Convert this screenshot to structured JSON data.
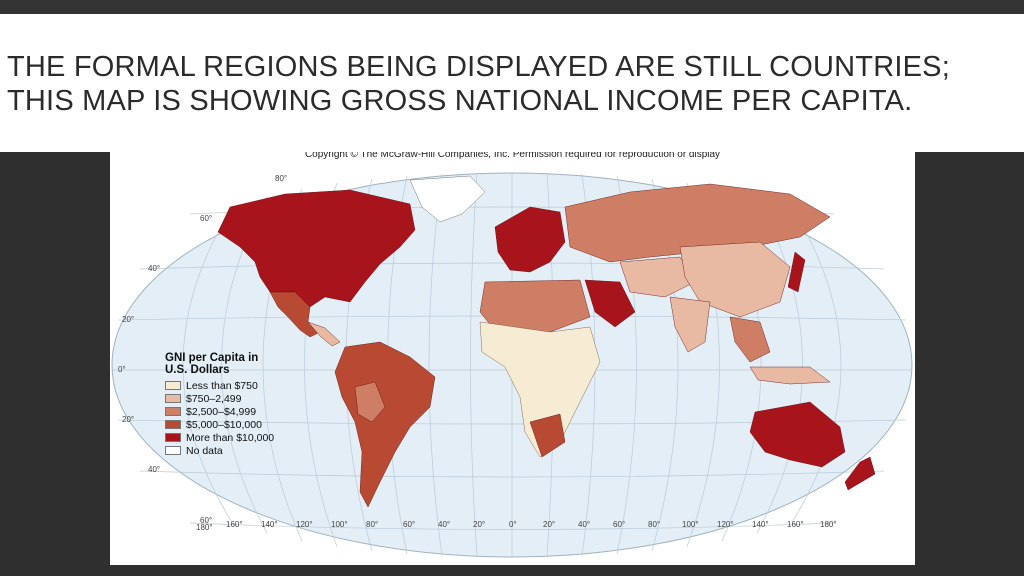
{
  "slide": {
    "title_line1": "THE FORMAL REGIONS BEING DISPLAYED ARE STILL COUNTRIES;",
    "title_line2": "THIS MAP IS SHOWING GROSS NATIONAL INCOME PER CAPITA."
  },
  "map": {
    "copyright": "Copyright © The McGraw-Hill Companies, Inc. Permission required for reproduction or display",
    "ocean_color": "#e3eef6",
    "grid_color": "#b9cbd9",
    "latitude_labels": [
      "80°",
      "60°",
      "40°",
      "20°",
      "0°",
      "20°",
      "40°",
      "60°"
    ],
    "longitude_labels": [
      "180°",
      "160°",
      "140°",
      "120°",
      "100°",
      "80°",
      "60°",
      "40°",
      "20°",
      "0°",
      "20°",
      "40°",
      "60°",
      "80°",
      "100°",
      "120°",
      "140°",
      "160°",
      "180°"
    ],
    "legend": {
      "title_line1": "GNI per Capita in",
      "title_line2": "U.S. Dollars",
      "items": [
        {
          "label": "Less than $750",
          "color": "#f6ecd3"
        },
        {
          "label": "$750–2,499",
          "color": "#e8b9a3"
        },
        {
          "label": "$2,500–$4,999",
          "color": "#cf7e66"
        },
        {
          "label": "$5,000–$10,000",
          "color": "#b84a33"
        },
        {
          "label": "More than $10,000",
          "color": "#a8141c"
        },
        {
          "label": "No data",
          "color": "#ffffff"
        }
      ]
    }
  }
}
